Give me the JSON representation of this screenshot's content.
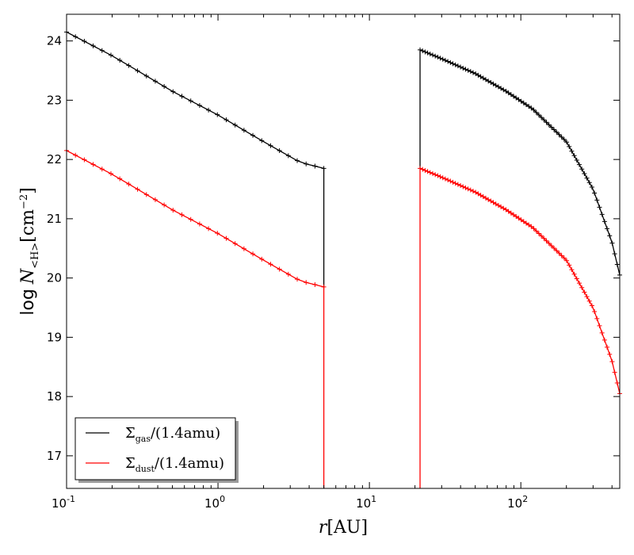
{
  "chart_data": {
    "type": "line",
    "xscale": "log",
    "xlim": [
      0.1,
      450
    ],
    "ylim": [
      16.45,
      24.45
    ],
    "xticks": [
      {
        "value": 0.1,
        "base": "10",
        "exp": "-1"
      },
      {
        "value": 1,
        "base": "10",
        "exp": "0"
      },
      {
        "value": 10,
        "base": "10",
        "exp": "1"
      },
      {
        "value": 100,
        "base": "10",
        "exp": "2"
      }
    ],
    "yticks": [
      17,
      18,
      19,
      20,
      21,
      22,
      23,
      24
    ],
    "xlabel": {
      "var": "r",
      "unit": "[AU]"
    },
    "ylabel": {
      "prefix": "log",
      "var": "N",
      "sub": "<H>",
      "unit": "[cm",
      "unit_exp": "−2",
      "unit_close": "]"
    },
    "legend": {
      "position": "lower-left",
      "entries": [
        {
          "symbol": "Σ",
          "sub": "gas",
          "tail": "/(1.4amu)",
          "color": "#000000"
        },
        {
          "symbol": "Σ",
          "sub": "dust",
          "tail": "/(1.4amu)",
          "color": "#ff0000"
        }
      ]
    },
    "series": [
      {
        "color": "#000000",
        "segments": [
          {
            "x": [
              0.1,
              0.2,
              0.5,
              1,
              2,
              3.5,
              5
            ],
            "y": [
              24.15,
              23.75,
              23.15,
              22.75,
              22.3,
              21.95,
              21.85
            ],
            "n_markers": 30
          },
          {
            "x": [
              21.6,
              30,
              50,
              80,
              120,
              200,
              300,
              400,
              450
            ],
            "y": [
              23.85,
              23.7,
              23.45,
              23.15,
              22.85,
              22.3,
              21.5,
              20.6,
              20.05
            ],
            "n_markers": 80
          }
        ],
        "drops": [
          {
            "x": 5,
            "from": 21.85,
            "to": 19.85
          },
          {
            "x": 21.6,
            "from": 21.85,
            "to": 23.85
          }
        ]
      },
      {
        "color": "#ff0000",
        "segments": [
          {
            "x": [
              0.1,
              0.2,
              0.5,
              1,
              2,
              3.5,
              5
            ],
            "y": [
              22.15,
              21.75,
              21.15,
              20.75,
              20.3,
              19.95,
              19.85
            ],
            "n_markers": 30
          },
          {
            "x": [
              21.6,
              30,
              50,
              80,
              120,
              200,
              300,
              400,
              450
            ],
            "y": [
              21.85,
              21.7,
              21.45,
              21.15,
              20.85,
              20.3,
              19.5,
              18.6,
              18.05
            ],
            "n_markers": 80
          }
        ],
        "drops": [
          {
            "x": 5,
            "from": 19.85,
            "to": 16.45
          },
          {
            "x": 21.6,
            "from": 16.45,
            "to": 21.85
          }
        ]
      }
    ]
  }
}
